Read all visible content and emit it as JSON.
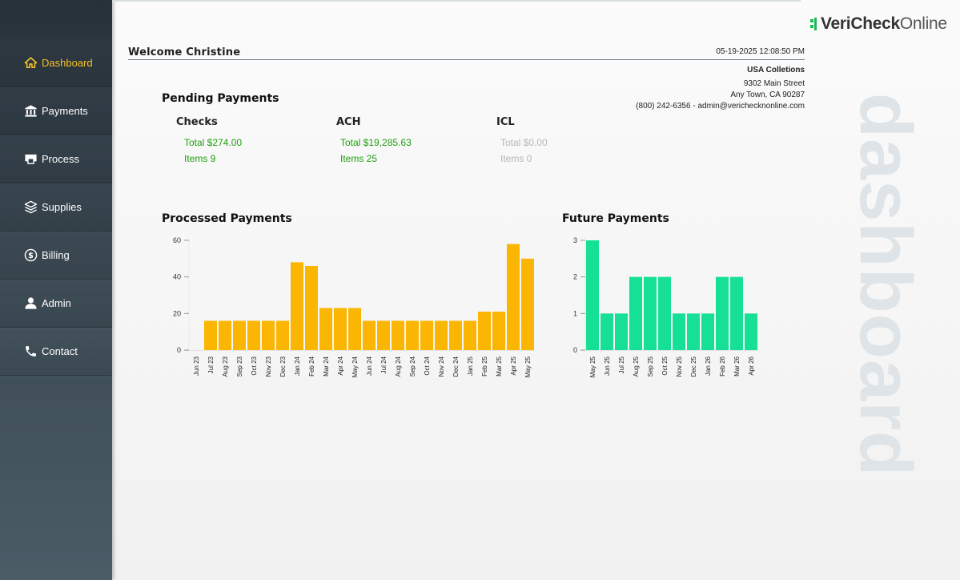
{
  "sidebar": {
    "items": [
      {
        "label": "Dashboard",
        "icon": "home-icon",
        "active": true
      },
      {
        "label": "Payments",
        "icon": "bank-icon"
      },
      {
        "label": "Process",
        "icon": "printer-icon"
      },
      {
        "label": "Supplies",
        "icon": "layers-icon"
      },
      {
        "label": "Billing",
        "icon": "dollar-circle-icon"
      },
      {
        "label": "Admin",
        "icon": "user-icon"
      },
      {
        "label": "Contact",
        "icon": "phone-icon"
      }
    ]
  },
  "logo": {
    "part1": "VeriCheck",
    "part2": "Online"
  },
  "watermark": "dashboard",
  "header": {
    "welcome": "Welcome Christine",
    "datetime": "05-19-2025 12:08:50 PM",
    "company_name": "USA Colletions",
    "address1": "9302 Main Street",
    "address2": "Any Town, CA 90287",
    "contact": "(800) 242-6356 - admin@verichecknonline.com"
  },
  "pending": {
    "title": "Pending Payments",
    "checks": {
      "label": "Checks",
      "total": "Total $274.00",
      "items": "Items 9"
    },
    "ach": {
      "label": "ACH",
      "total": "Total $19,285.63",
      "items": "Items 25"
    },
    "icl": {
      "label": "ICL",
      "total": "Total $0.00",
      "items": "Items 0"
    }
  },
  "colors": {
    "accent": "#f7c325",
    "processed_bar": "#fbb603",
    "future_bar": "#16e095",
    "pending_green": "#1f9e0e"
  },
  "chart_data": [
    {
      "type": "bar",
      "title": "Processed Payments",
      "categories": [
        "Jun 23",
        "Jul 23",
        "Aug 23",
        "Sep 23",
        "Oct 23",
        "Nov 23",
        "Dec 23",
        "Jan 24",
        "Feb 24",
        "Mar 24",
        "Apr 24",
        "May 24",
        "Jun 24",
        "Jul 24",
        "Aug 24",
        "Sep 24",
        "Oct 24",
        "Nov 24",
        "Dec 24",
        "Jan 25",
        "Feb 25",
        "Mar 25",
        "Apr 25",
        "May 25"
      ],
      "values": [
        0,
        16,
        16,
        16,
        16,
        16,
        16,
        48,
        46,
        23,
        23,
        23,
        16,
        16,
        16,
        16,
        16,
        16,
        16,
        16,
        21,
        21,
        58,
        50
      ],
      "yticks": [
        0,
        20,
        40,
        60
      ],
      "ylim": [
        0,
        60
      ],
      "color": "#fbb603"
    },
    {
      "type": "bar",
      "title": "Future Payments",
      "categories": [
        "May 25",
        "Jun 25",
        "Jul 25",
        "Aug 25",
        "Sep 25",
        "Oct 25",
        "Nov 25",
        "Dec 25",
        "Jan 26",
        "Feb 26",
        "Mar 26",
        "Apr 26"
      ],
      "values": [
        3,
        1,
        1,
        2,
        2,
        2,
        1,
        1,
        1,
        2,
        2,
        1
      ],
      "yticks": [
        0,
        1,
        2,
        3
      ],
      "ylim": [
        0,
        3
      ],
      "color": "#16e095"
    }
  ]
}
